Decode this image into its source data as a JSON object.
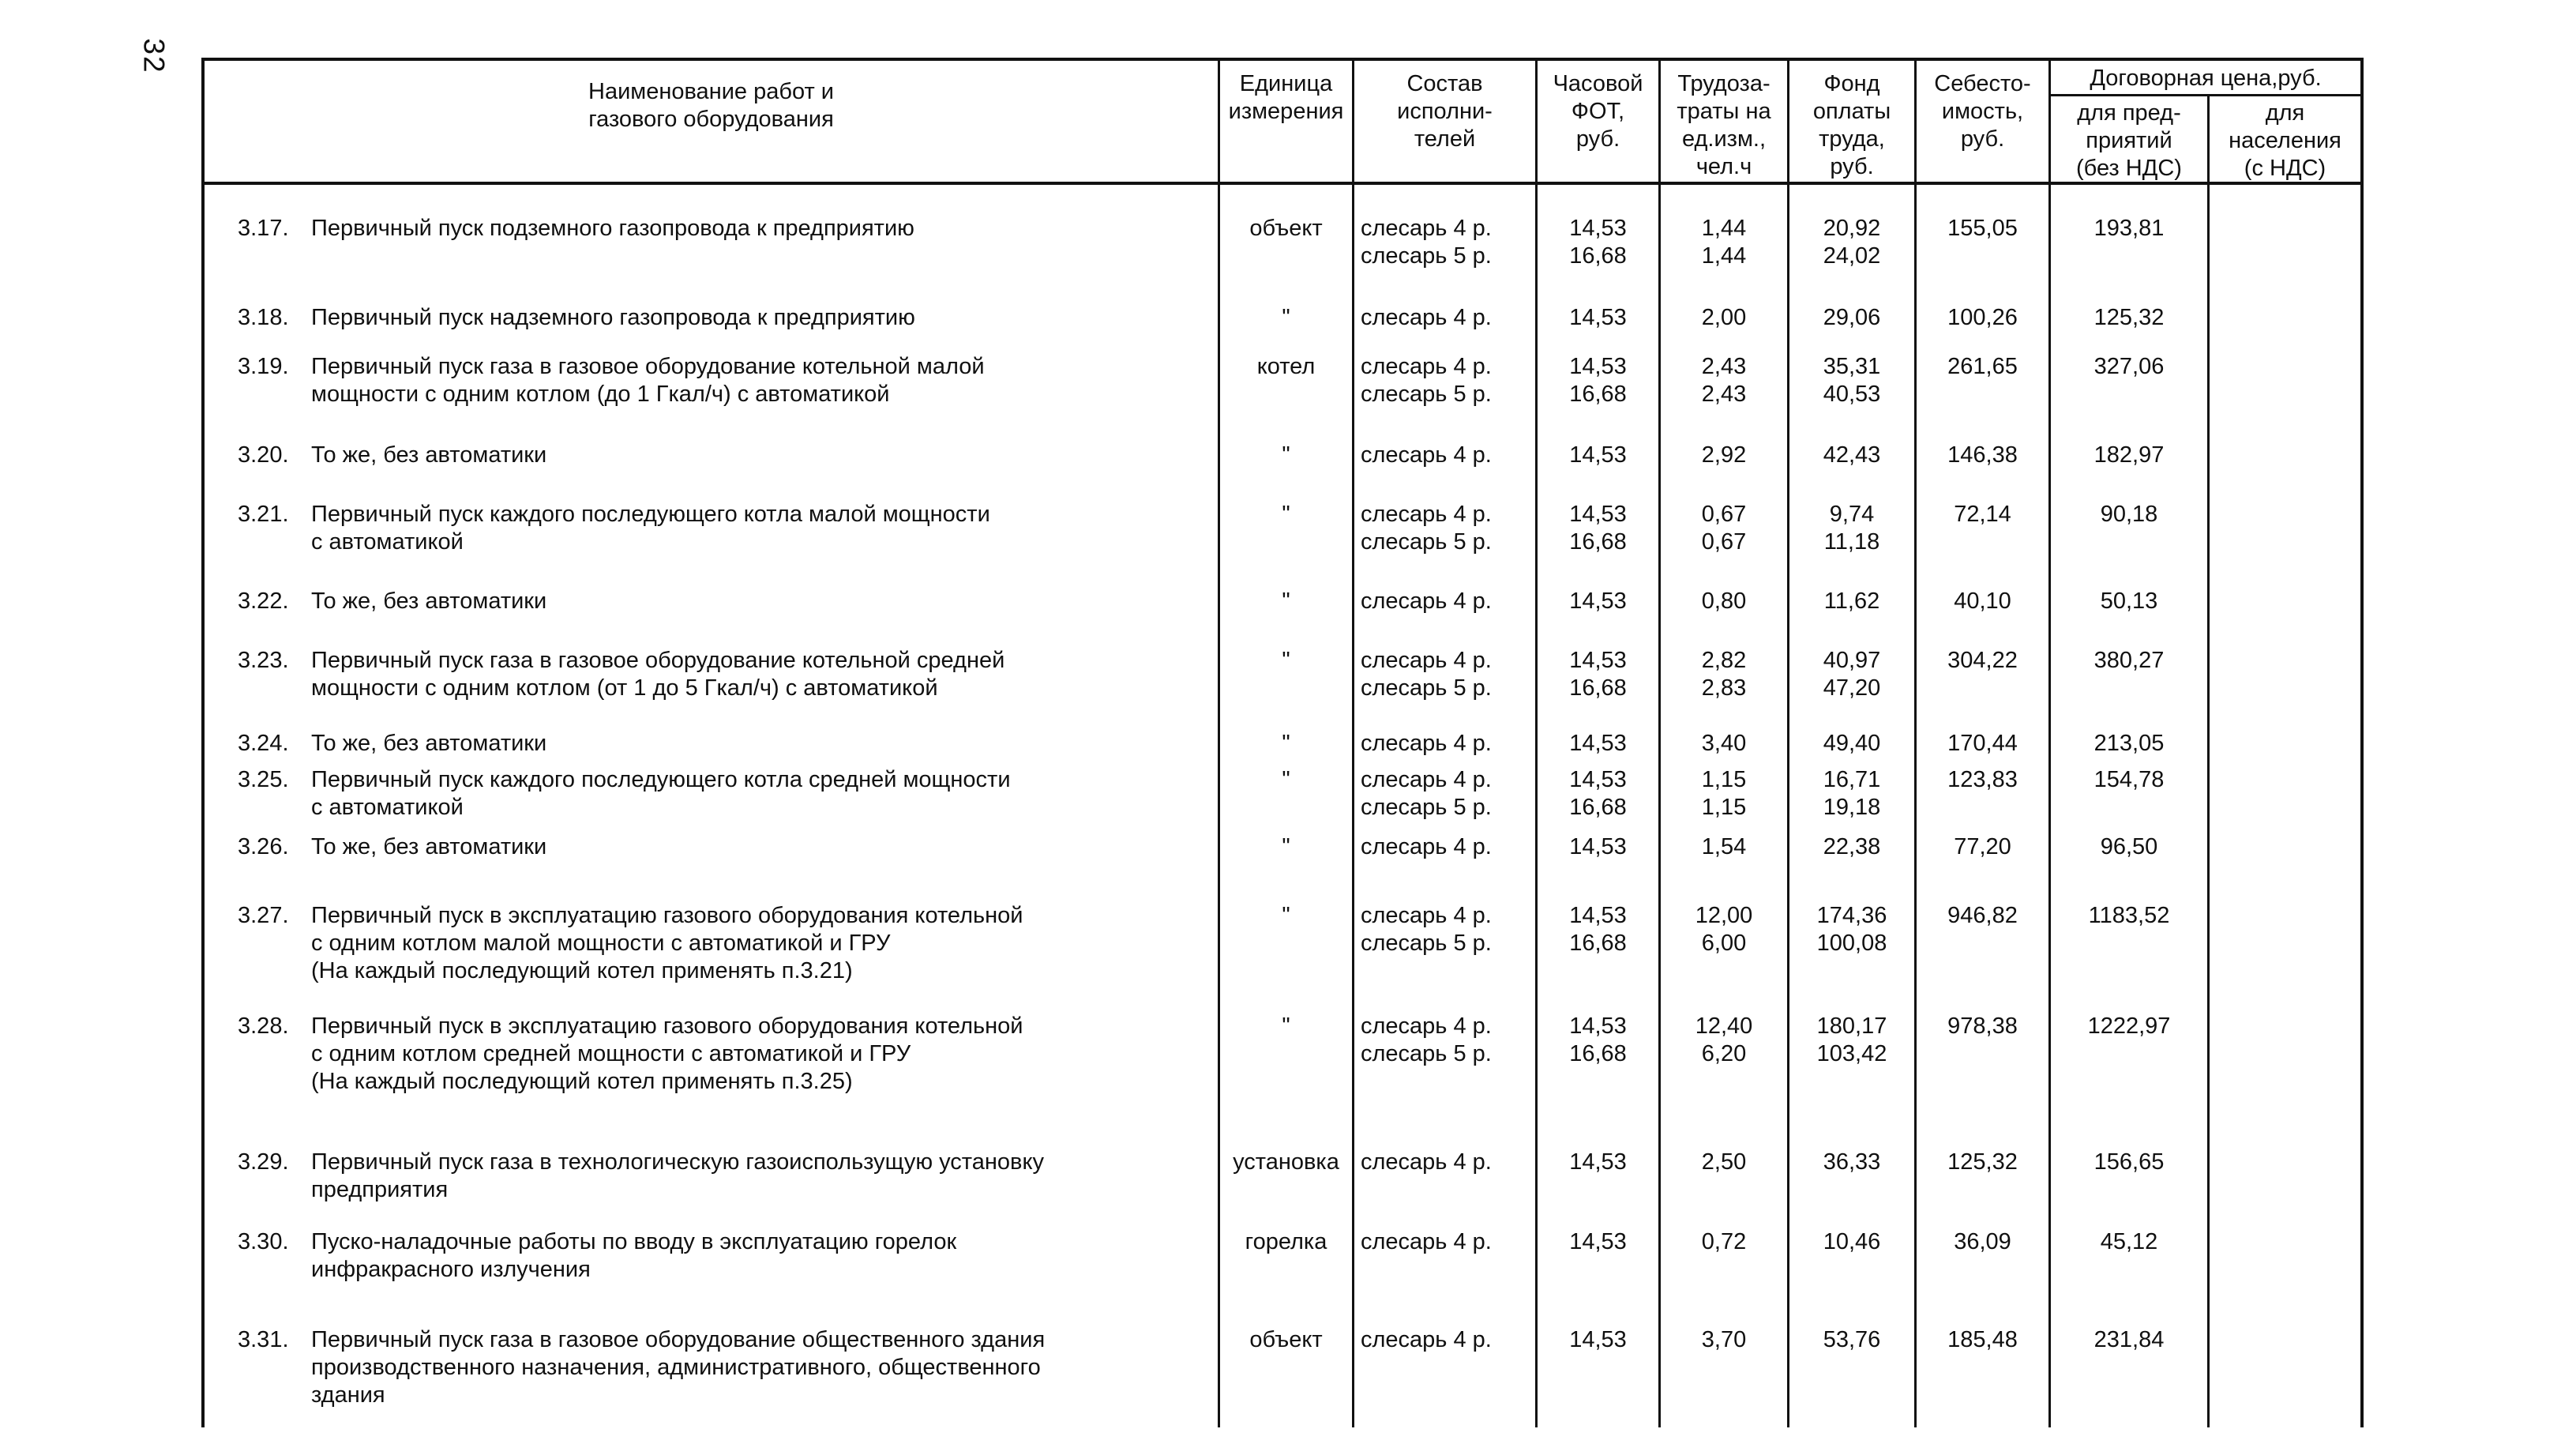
{
  "page": {
    "number": "32"
  },
  "table": {
    "header": {
      "name": "Наименование работ и\nгазового оборудования",
      "unit": "Единица\nизмерения",
      "crew": "Состав\nисполни-\nтелей",
      "fot": "Часовой\nФОТ,\nруб.",
      "labor": "Трудоза-\nтраты на\nед.изм.,\nчел.ч",
      "fund": "Фонд\nоплаты\nтруда,\nруб.",
      "cost": "Себесто-\nимость,\nруб.",
      "price_group": "Договорная цена,руб.",
      "price_enterprises": "для пред-\nприятий\n(без НДС)",
      "price_population": "для\nнаселения\n(с НДС)"
    },
    "rows": [
      {
        "num": "3.17.",
        "name": "Первичный пуск  подземного газопровода к предприятию",
        "unit": "объект",
        "crew": "слесарь 4 р.\nслесарь 5 р.",
        "fot": "14,53\n16,68",
        "labor": "1,44\n1,44",
        "fund": "20,92\n24,02",
        "cost": "155,05",
        "price_enterprises": "193,81",
        "price_population": ""
      },
      {
        "num": "3.18.",
        "name": "Первичный пуск  надземного газопровода к предприятию",
        "unit": "\"",
        "crew": "слесарь 4 р.",
        "fot": "14,53",
        "labor": "2,00",
        "fund": "29,06",
        "cost": "100,26",
        "price_enterprises": "125,32",
        "price_population": ""
      },
      {
        "num": "3.19.",
        "name": "Первичный пуск газа в  газовое оборудование котельной малой\nмощности с одним котлом (до 1 Гкал/ч) с автоматикой",
        "unit": "котел",
        "crew": "слесарь 4 р.\nслесарь 5 р.",
        "fot": "14,53\n16,68",
        "labor": "2,43\n2,43",
        "fund": "35,31\n40,53",
        "cost": "261,65",
        "price_enterprises": "327,06",
        "price_population": ""
      },
      {
        "num": "3.20.",
        "name": "То же, без автоматики",
        "unit": "\"",
        "crew": "слесарь 4 р.",
        "fot": "14,53",
        "labor": "2,92",
        "fund": "42,43",
        "cost": "146,38",
        "price_enterprises": "182,97",
        "price_population": ""
      },
      {
        "num": "3.21.",
        "name": "Первичный пуск каждого последующего котла малой мощности\nс автоматикой",
        "unit": "\"",
        "crew": "слесарь 4 р.\nслесарь 5 р.",
        "fot": "14,53\n16,68",
        "labor": "0,67\n0,67",
        "fund": "9,74\n11,18",
        "cost": "72,14",
        "price_enterprises": "90,18",
        "price_population": ""
      },
      {
        "num": "3.22.",
        "name": "То же, без автоматики",
        "unit": "\"",
        "crew": "слесарь 4 р.",
        "fot": "14,53",
        "labor": "0,80",
        "fund": "11,62",
        "cost": "40,10",
        "price_enterprises": "50,13",
        "price_population": ""
      },
      {
        "num": "3.23.",
        "name": "Первичный пуск газа в  газовое оборудование котельной средней\nмощности с одним котлом (от 1 до 5 Гкал/ч) с автоматикой",
        "unit": "\"",
        "crew": "слесарь 4 р.\nслесарь 5 р.",
        "fot": "14,53\n16,68",
        "labor": "2,82\n2,83",
        "fund": "40,97\n47,20",
        "cost": "304,22",
        "price_enterprises": "380,27",
        "price_population": ""
      },
      {
        "num": "3.24.",
        "name": "То же, без автоматики",
        "unit": "\"",
        "crew": "слесарь 4 р.",
        "fot": "14,53",
        "labor": "3,40",
        "fund": "49,40",
        "cost": "170,44",
        "price_enterprises": "213,05",
        "price_population": ""
      },
      {
        "num": "3.25.",
        "name": "Первичный пуск каждого последующего котла средней мощности\nс автоматикой",
        "unit": "\"",
        "crew": "слесарь 4 р.\nслесарь 5 р.",
        "fot": "14,53\n16,68",
        "labor": "1,15\n1,15",
        "fund": "16,71\n19,18",
        "cost": "123,83",
        "price_enterprises": "154,78",
        "price_population": ""
      },
      {
        "num": "3.26.",
        "name": "То же, без автоматики",
        "unit": "\"",
        "crew": "слесарь 4 р.",
        "fot": "14,53",
        "labor": "1,54",
        "fund": "22,38",
        "cost": "77,20",
        "price_enterprises": "96,50",
        "price_population": ""
      },
      {
        "num": "3.27.",
        "name": "Первичный пуск в эксплуатацию газового оборудования котельной\nс одним котлом малой мощности с автоматикой и ГРУ\n(На каждый последующий котел применять п.3.21)",
        "unit": "\"",
        "crew": "слесарь 4 р.\nслесарь 5 р.",
        "fot": "14,53\n16,68",
        "labor": "12,00\n6,00",
        "fund": "174,36\n100,08",
        "cost": "946,82",
        "price_enterprises": "1183,52",
        "price_population": ""
      },
      {
        "num": "3.28.",
        "name": "Первичный пуск в эксплуатацию газового оборудования котельной\nс одним котлом средней мощности с автоматикой и ГРУ\n(На каждый последующий котел применять п.3.25)",
        "unit": "\"",
        "crew": "слесарь 4 р.\nслесарь 5 р.",
        "fot": "14,53\n16,68",
        "labor": "12,40\n6,20",
        "fund": "180,17\n103,42",
        "cost": "978,38",
        "price_enterprises": "1222,97",
        "price_population": ""
      },
      {
        "num": "3.29.",
        "name": "Первичный пуск газа в технологическую газоиспользущую установку\nпредприятия",
        "unit": "установка",
        "crew": "слесарь 4 р.",
        "fot": "14,53",
        "labor": "2,50",
        "fund": "36,33",
        "cost": "125,32",
        "price_enterprises": "156,65",
        "price_population": ""
      },
      {
        "num": "3.30.",
        "name": "Пуско-наладочные работы по вводу в эксплуатацию горелок\nинфракрасного излучения",
        "unit": "горелка",
        "crew": "слесарь 4 р.",
        "fot": "14,53",
        "labor": "0,72",
        "fund": "10,46",
        "cost": "36,09",
        "price_enterprises": "45,12",
        "price_population": ""
      },
      {
        "num": "3.31.",
        "name": "Первичный пуск газа в газовое оборудование общественного здания\nпроизводственного назначения, административного, общественного\nздания",
        "unit": "объект",
        "crew": "слесарь 4 р.",
        "fot": "14,53",
        "labor": "3,70",
        "fund": "53,76",
        "cost": "185,48",
        "price_enterprises": "231,84",
        "price_population": ""
      }
    ]
  }
}
